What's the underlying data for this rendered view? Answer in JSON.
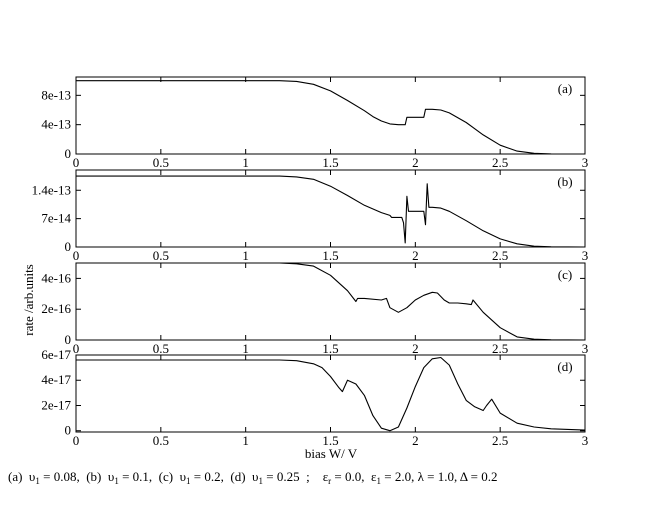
{
  "figure": {
    "ylabel": "rate /arb.units",
    "xlabel": "bias W/ V",
    "caption": {
      "part_a": "(a)  υ",
      "sub_1": "1",
      "val_a": " = 0.08,  ",
      "part_b": "(b)  υ",
      "val_b": " = 0.1,  ",
      "part_c": "(c)  υ",
      "val_c": " = 0.2,  ",
      "part_d": "(d)  υ",
      "val_d": " = 0.25  ;    ",
      "eps": "ε",
      "sub_r": "r",
      "val_eps_r": " = 0.0,  ",
      "val_eps_1": " = 2.0, λ = 1.0, Δ = 0.2"
    }
  },
  "chart_data": [
    {
      "type": "line",
      "panel_label": "(a)",
      "xlim": [
        0,
        3
      ],
      "ylim": [
        0,
        1.05e-12
      ],
      "x_ticks": [
        0,
        0.5,
        1,
        1.5,
        2,
        2.5,
        3
      ],
      "x_tick_labels": [
        "0",
        "0.5",
        "1",
        "1.5",
        "2",
        "2.5",
        "3"
      ],
      "y_ticks": [
        0,
        4e-13,
        8e-13
      ],
      "y_tick_labels": [
        "0",
        "4e-13",
        "8e-13"
      ],
      "series": [
        {
          "x": [
            0,
            1.0,
            1.2,
            1.3,
            1.4,
            1.5,
            1.6,
            1.7,
            1.75,
            1.8,
            1.85,
            1.9,
            1.94,
            1.95,
            2.0,
            2.05,
            2.06,
            2.1,
            2.15,
            2.2,
            2.3,
            2.4,
            2.5,
            2.6,
            2.7,
            2.8,
            3.0
          ],
          "y": [
            1e-12,
            1e-12,
            1e-12,
            9.9e-13,
            9.5e-13,
            8.6e-13,
            7.3e-13,
            5.9e-13,
            5.1e-13,
            4.5e-13,
            4.1e-13,
            4e-13,
            4e-13,
            5e-13,
            5e-13,
            5e-13,
            6.1e-13,
            6.1e-13,
            6e-13,
            5.6e-13,
            4.3e-13,
            2.6e-13,
            1.2e-13,
            4e-14,
            1e-14,
            2e-15,
            0
          ]
        }
      ]
    },
    {
      "type": "line",
      "panel_label": "(b)",
      "xlim": [
        0,
        3
      ],
      "ylim": [
        0,
        1.9e-13
      ],
      "x_ticks": [
        0,
        0.5,
        1,
        1.5,
        2,
        2.5,
        3
      ],
      "x_tick_labels": [
        "0",
        "0.5",
        "1",
        "1.5",
        "2",
        "2.5",
        "3"
      ],
      "y_ticks": [
        0,
        7e-14,
        1.4e-13
      ],
      "y_tick_labels": [
        "0",
        "7e-14",
        "1.4e-13"
      ],
      "series": [
        {
          "x": [
            0,
            1.0,
            1.2,
            1.3,
            1.4,
            1.5,
            1.6,
            1.7,
            1.8,
            1.85,
            1.86,
            1.92,
            1.93,
            1.94,
            1.95,
            1.96,
            2.0,
            2.05,
            2.06,
            2.07,
            2.08,
            2.09,
            2.1,
            2.15,
            2.2,
            2.3,
            2.4,
            2.5,
            2.6,
            2.7,
            2.8,
            3.0
          ],
          "y": [
            1.75e-13,
            1.75e-13,
            1.75e-13,
            1.73e-13,
            1.67e-13,
            1.5e-13,
            1.27e-13,
            1.03e-13,
            8.5e-14,
            7.8e-14,
            7.3e-14,
            7.3e-14,
            6e-14,
            1e-14,
            1.25e-13,
            8.8e-14,
            8.8e-14,
            8.8e-14,
            5.5e-14,
            1.56e-13,
            9.8e-14,
            9.8e-14,
            9.8e-14,
            9.6e-14,
            8.8e-14,
            6.5e-14,
            4e-14,
            2e-14,
            8e-15,
            2e-15,
            5e-16,
            0
          ]
        }
      ]
    },
    {
      "type": "line",
      "panel_label": "(c)",
      "xlim": [
        0,
        3
      ],
      "ylim": [
        0,
        5e-16
      ],
      "x_ticks": [
        0,
        0.5,
        1,
        1.5,
        2,
        2.5,
        3
      ],
      "x_tick_labels": [
        "0",
        "0.5",
        "1",
        "1.5",
        "2",
        "2.5",
        "3"
      ],
      "y_ticks": [
        0,
        2e-16,
        4e-16
      ],
      "y_tick_labels": [
        "0",
        "2e-16",
        "4e-16"
      ],
      "series": [
        {
          "x": [
            0,
            1.0,
            1.2,
            1.3,
            1.4,
            1.5,
            1.6,
            1.65,
            1.66,
            1.7,
            1.8,
            1.83,
            1.85,
            1.9,
            1.95,
            2.0,
            2.05,
            2.1,
            2.13,
            2.17,
            2.2,
            2.25,
            2.3,
            2.33,
            2.34,
            2.4,
            2.5,
            2.6,
            2.7,
            2.8,
            3.0
          ],
          "y": [
            5e-16,
            5e-16,
            5e-16,
            4.95e-16,
            4.8e-16,
            4.2e-16,
            3.2e-16,
            2.5e-16,
            2.7e-16,
            2.7e-16,
            2.6e-16,
            2.7e-16,
            2.1e-16,
            1.8e-16,
            2.1e-16,
            2.6e-16,
            2.9e-16,
            3.1e-16,
            3.05e-16,
            2.6e-16,
            2.4e-16,
            2.4e-16,
            2.35e-16,
            2.3e-16,
            2.6e-16,
            1.8e-16,
            8e-17,
            2e-17,
            5e-18,
            1e-18,
            0
          ]
        }
      ]
    },
    {
      "type": "line",
      "panel_label": "(d)",
      "xlim": [
        0,
        3
      ],
      "ylim": [
        -1e-18,
        6e-17
      ],
      "x_ticks": [
        0,
        0.5,
        1,
        1.5,
        2,
        2.5,
        3
      ],
      "x_tick_labels": [
        "0",
        "0.5",
        "1",
        "1.5",
        "2",
        "2.5",
        "3"
      ],
      "y_ticks": [
        0,
        2e-17,
        4e-17,
        6e-17
      ],
      "y_tick_labels": [
        "0",
        "2e-17",
        "4e-17",
        "6e-17"
      ],
      "series": [
        {
          "x": [
            0,
            1.0,
            1.2,
            1.3,
            1.4,
            1.45,
            1.5,
            1.55,
            1.57,
            1.6,
            1.65,
            1.7,
            1.75,
            1.8,
            1.85,
            1.9,
            1.95,
            2.0,
            2.05,
            2.1,
            2.15,
            2.2,
            2.25,
            2.3,
            2.35,
            2.4,
            2.42,
            2.45,
            2.5,
            2.6,
            2.7,
            2.8,
            3.0
          ],
          "y": [
            5.6e-17,
            5.6e-17,
            5.6e-17,
            5.55e-17,
            5.3e-17,
            5e-17,
            4.3e-17,
            3.4e-17,
            3.1e-17,
            4e-17,
            3.7e-17,
            2.8e-17,
            1.2e-17,
            2e-18,
            0,
            3e-18,
            1.8e-17,
            3.5e-17,
            5e-17,
            5.7e-17,
            5.8e-17,
            5.2e-17,
            3.7e-17,
            2.4e-17,
            1.9e-17,
            1.6e-17,
            2e-17,
            2.5e-17,
            1.4e-17,
            6e-18,
            3e-18,
            1.5e-18,
            5e-19
          ]
        }
      ]
    }
  ]
}
